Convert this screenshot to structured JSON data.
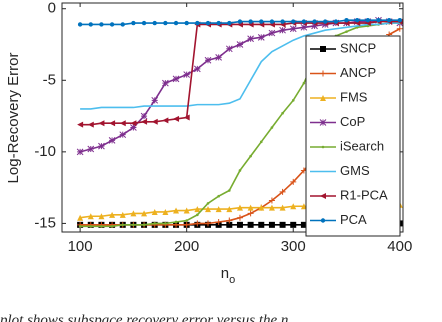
{
  "chart_data": {
    "type": "line",
    "ylabel": "Log-Recovery Error",
    "xlabel": {
      "text": "n",
      "subscript": "o"
    },
    "caption": "plot shows subspace recovery error versus the n",
    "x": [
      100,
      110,
      120,
      130,
      140,
      150,
      160,
      170,
      180,
      190,
      200,
      210,
      220,
      230,
      240,
      250,
      260,
      270,
      280,
      290,
      300,
      310,
      320,
      330,
      340,
      350,
      360,
      370,
      380,
      390,
      400
    ],
    "xlim": [
      83,
      403
    ],
    "xticks": [
      100,
      200,
      300,
      400
    ],
    "ylim": [
      -15.6,
      0.4
    ],
    "yticks": [
      -15,
      -10,
      -5,
      0
    ],
    "legend": "upper-right",
    "series": [
      {
        "name": "SNCP",
        "color": "#000000",
        "marker": "square",
        "values": [
          -15.1,
          -15.1,
          -15.1,
          -15.1,
          -15.1,
          -15.1,
          -15.1,
          -15.1,
          -15.1,
          -15.1,
          -15.1,
          -15.1,
          -15.1,
          -15.1,
          -15.1,
          -15.1,
          -15.1,
          -15.1,
          -15.1,
          -15.1,
          -15.1,
          -15.1,
          -15.1,
          -15.1,
          -15.1,
          -15.1,
          -15.1,
          -15.1,
          -15.0,
          -15.0,
          -15.0
        ]
      },
      {
        "name": "ANCP",
        "color": "#d95319",
        "marker": "plus",
        "values": [
          -15.1,
          -15.1,
          -15.1,
          -15.1,
          -15.1,
          -15.1,
          -15.1,
          -15.1,
          -15.1,
          -15.1,
          -15.1,
          -15.0,
          -15.0,
          -14.9,
          -14.8,
          -14.6,
          -14.3,
          -13.9,
          -13.4,
          -12.8,
          -12.1,
          -11.3,
          -10.4,
          -9.4,
          -8.3,
          -7.3,
          -6.2,
          -4.8,
          -3.2,
          -1.8,
          -1.4
        ]
      },
      {
        "name": "FMS",
        "color": "#edb120",
        "marker": "triangle",
        "values": [
          -14.6,
          -14.5,
          -14.5,
          -14.4,
          -14.4,
          -14.3,
          -14.3,
          -14.2,
          -14.2,
          -14.1,
          -14.1,
          -14.0,
          -14.0,
          -14.0,
          -14.0,
          -13.9,
          -13.9,
          -13.9,
          -13.9,
          -13.9,
          -13.8,
          -13.8,
          -13.8,
          -13.8,
          -13.8,
          -13.8,
          -13.7,
          -13.7,
          -13.7,
          -13.7,
          -13.7
        ]
      },
      {
        "name": "CoP",
        "color": "#7e2f8e",
        "marker": "star",
        "values": [
          -10.0,
          -9.8,
          -9.6,
          -9.2,
          -8.8,
          -8.3,
          -7.5,
          -6.4,
          -5.2,
          -4.9,
          -4.6,
          -4.2,
          -3.6,
          -3.4,
          -2.8,
          -2.5,
          -2.1,
          -2.0,
          -1.7,
          -1.5,
          -1.4,
          -1.3,
          -1.2,
          -1.1,
          -1.0,
          -1.0,
          -0.9,
          -0.9,
          -0.8,
          -0.9,
          -1.0
        ]
      },
      {
        "name": "iSearch",
        "color": "#77ac30",
        "marker": "dot",
        "values": [
          -15.2,
          -15.2,
          -15.2,
          -15.2,
          -15.1,
          -15.1,
          -15.1,
          -15.0,
          -15.0,
          -14.9,
          -14.8,
          -14.4,
          -13.6,
          -13.1,
          -12.7,
          -11.3,
          -10.3,
          -9.3,
          -8.3,
          -7.3,
          -6.4,
          -5.2,
          -3.5,
          -2.5,
          -1.9,
          -1.6,
          -1.3,
          -1.2,
          -1.1,
          -1.0,
          -1.0
        ]
      },
      {
        "name": "GMS",
        "color": "#4dbeee",
        "marker": "none",
        "values": [
          -7.0,
          -7.0,
          -6.9,
          -6.9,
          -6.9,
          -6.9,
          -6.8,
          -6.8,
          -6.8,
          -6.8,
          -6.8,
          -6.7,
          -6.7,
          -6.7,
          -6.6,
          -6.3,
          -5.0,
          -3.7,
          -3.0,
          -2.6,
          -2.2,
          -1.9,
          -1.7,
          -1.5,
          -1.4,
          -1.3,
          -1.2,
          -1.1,
          -1.1,
          -1.0,
          -1.0
        ]
      },
      {
        "name": "R1-PCA",
        "color": "#a2142f",
        "marker": "tri-left",
        "values": [
          -8.1,
          -8.1,
          -8.0,
          -8.0,
          -8.0,
          -8.0,
          -7.9,
          -7.9,
          -7.8,
          -7.7,
          -7.6,
          -1.1,
          -1.1,
          -1.1,
          -1.1,
          -1.1,
          -1.1,
          -1.1,
          -1.1,
          -1.1,
          -1.0,
          -1.0,
          -1.0,
          -1.0,
          -1.0,
          -1.0,
          -1.0,
          -1.0,
          -0.9,
          -0.9,
          -0.9
        ]
      },
      {
        "name": "PCA",
        "color": "#0072bd",
        "marker": "circle",
        "values": [
          -1.1,
          -1.1,
          -1.1,
          -1.1,
          -1.1,
          -1.0,
          -1.0,
          -1.0,
          -1.0,
          -1.0,
          -1.0,
          -1.0,
          -1.0,
          -1.0,
          -1.0,
          -0.9,
          -0.9,
          -0.9,
          -0.9,
          -0.9,
          -0.9,
          -0.9,
          -0.9,
          -0.9,
          -0.9,
          -0.8,
          -0.8,
          -0.8,
          -0.8,
          -0.8,
          -0.8
        ]
      }
    ]
  }
}
